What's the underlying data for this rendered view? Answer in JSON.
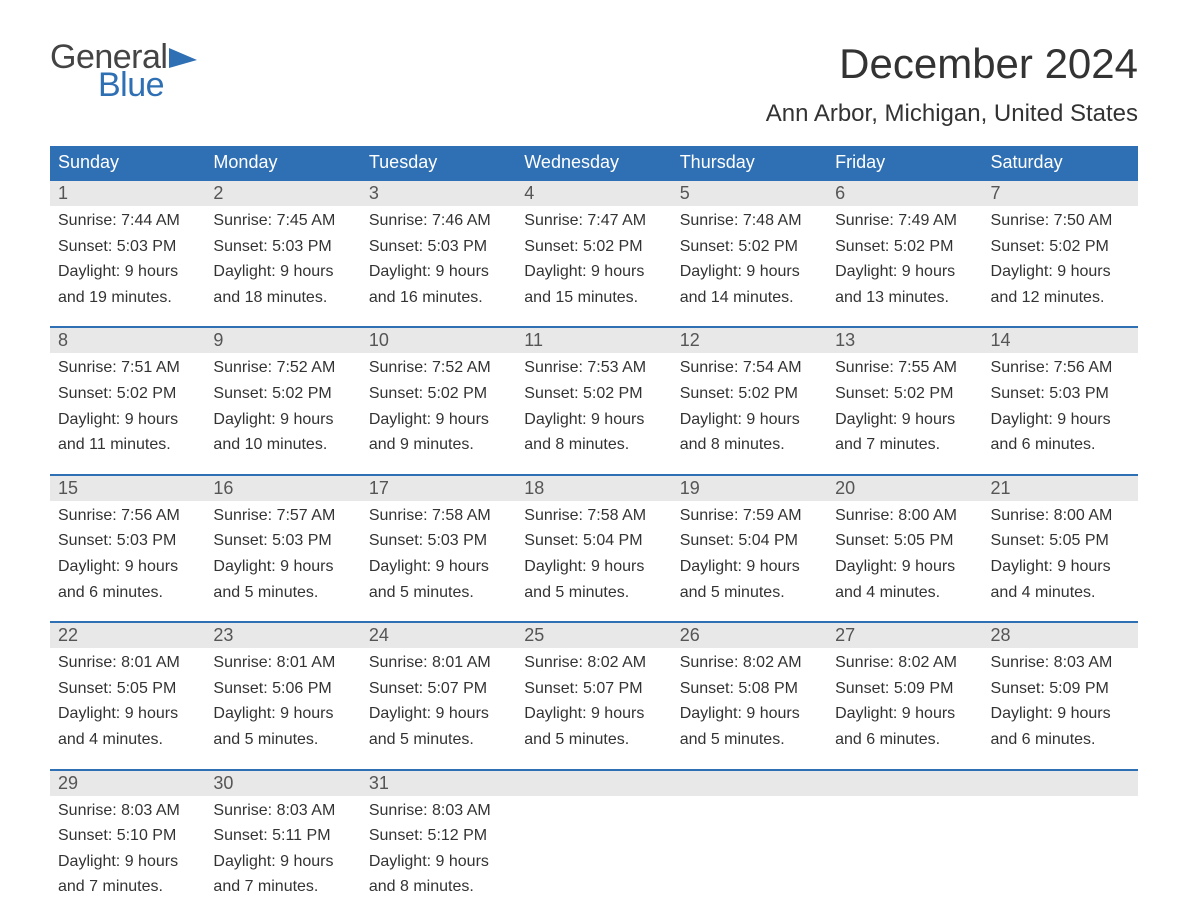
{
  "logo": {
    "text_general": "General",
    "text_blue": "Blue",
    "flag_color": "#2f6fb3",
    "general_color": "#444444"
  },
  "title": "December 2024",
  "location": "Ann Arbor, Michigan, United States",
  "colors": {
    "header_bg": "#2f6fb3",
    "header_text": "#ffffff",
    "daynum_bg": "#e8e8e8",
    "daynum_text": "#555555",
    "body_text": "#333333",
    "week_border": "#2f6fb3",
    "page_bg": "#ffffff"
  },
  "fonts": {
    "title_size_pt": 32,
    "location_size_pt": 18,
    "day_header_size_pt": 14,
    "daynum_size_pt": 14,
    "cell_size_pt": 12,
    "family": "Arial"
  },
  "day_names": [
    "Sunday",
    "Monday",
    "Tuesday",
    "Wednesday",
    "Thursday",
    "Friday",
    "Saturday"
  ],
  "weeks": [
    [
      {
        "n": "1",
        "sr": "Sunrise: 7:44 AM",
        "ss": "Sunset: 5:03 PM",
        "d1": "Daylight: 9 hours",
        "d2": "and 19 minutes."
      },
      {
        "n": "2",
        "sr": "Sunrise: 7:45 AM",
        "ss": "Sunset: 5:03 PM",
        "d1": "Daylight: 9 hours",
        "d2": "and 18 minutes."
      },
      {
        "n": "3",
        "sr": "Sunrise: 7:46 AM",
        "ss": "Sunset: 5:03 PM",
        "d1": "Daylight: 9 hours",
        "d2": "and 16 minutes."
      },
      {
        "n": "4",
        "sr": "Sunrise: 7:47 AM",
        "ss": "Sunset: 5:02 PM",
        "d1": "Daylight: 9 hours",
        "d2": "and 15 minutes."
      },
      {
        "n": "5",
        "sr": "Sunrise: 7:48 AM",
        "ss": "Sunset: 5:02 PM",
        "d1": "Daylight: 9 hours",
        "d2": "and 14 minutes."
      },
      {
        "n": "6",
        "sr": "Sunrise: 7:49 AM",
        "ss": "Sunset: 5:02 PM",
        "d1": "Daylight: 9 hours",
        "d2": "and 13 minutes."
      },
      {
        "n": "7",
        "sr": "Sunrise: 7:50 AM",
        "ss": "Sunset: 5:02 PM",
        "d1": "Daylight: 9 hours",
        "d2": "and 12 minutes."
      }
    ],
    [
      {
        "n": "8",
        "sr": "Sunrise: 7:51 AM",
        "ss": "Sunset: 5:02 PM",
        "d1": "Daylight: 9 hours",
        "d2": "and 11 minutes."
      },
      {
        "n": "9",
        "sr": "Sunrise: 7:52 AM",
        "ss": "Sunset: 5:02 PM",
        "d1": "Daylight: 9 hours",
        "d2": "and 10 minutes."
      },
      {
        "n": "10",
        "sr": "Sunrise: 7:52 AM",
        "ss": "Sunset: 5:02 PM",
        "d1": "Daylight: 9 hours",
        "d2": "and 9 minutes."
      },
      {
        "n": "11",
        "sr": "Sunrise: 7:53 AM",
        "ss": "Sunset: 5:02 PM",
        "d1": "Daylight: 9 hours",
        "d2": "and 8 minutes."
      },
      {
        "n": "12",
        "sr": "Sunrise: 7:54 AM",
        "ss": "Sunset: 5:02 PM",
        "d1": "Daylight: 9 hours",
        "d2": "and 8 minutes."
      },
      {
        "n": "13",
        "sr": "Sunrise: 7:55 AM",
        "ss": "Sunset: 5:02 PM",
        "d1": "Daylight: 9 hours",
        "d2": "and 7 minutes."
      },
      {
        "n": "14",
        "sr": "Sunrise: 7:56 AM",
        "ss": "Sunset: 5:03 PM",
        "d1": "Daylight: 9 hours",
        "d2": "and 6 minutes."
      }
    ],
    [
      {
        "n": "15",
        "sr": "Sunrise: 7:56 AM",
        "ss": "Sunset: 5:03 PM",
        "d1": "Daylight: 9 hours",
        "d2": "and 6 minutes."
      },
      {
        "n": "16",
        "sr": "Sunrise: 7:57 AM",
        "ss": "Sunset: 5:03 PM",
        "d1": "Daylight: 9 hours",
        "d2": "and 5 minutes."
      },
      {
        "n": "17",
        "sr": "Sunrise: 7:58 AM",
        "ss": "Sunset: 5:03 PM",
        "d1": "Daylight: 9 hours",
        "d2": "and 5 minutes."
      },
      {
        "n": "18",
        "sr": "Sunrise: 7:58 AM",
        "ss": "Sunset: 5:04 PM",
        "d1": "Daylight: 9 hours",
        "d2": "and 5 minutes."
      },
      {
        "n": "19",
        "sr": "Sunrise: 7:59 AM",
        "ss": "Sunset: 5:04 PM",
        "d1": "Daylight: 9 hours",
        "d2": "and 5 minutes."
      },
      {
        "n": "20",
        "sr": "Sunrise: 8:00 AM",
        "ss": "Sunset: 5:05 PM",
        "d1": "Daylight: 9 hours",
        "d2": "and 4 minutes."
      },
      {
        "n": "21",
        "sr": "Sunrise: 8:00 AM",
        "ss": "Sunset: 5:05 PM",
        "d1": "Daylight: 9 hours",
        "d2": "and 4 minutes."
      }
    ],
    [
      {
        "n": "22",
        "sr": "Sunrise: 8:01 AM",
        "ss": "Sunset: 5:05 PM",
        "d1": "Daylight: 9 hours",
        "d2": "and 4 minutes."
      },
      {
        "n": "23",
        "sr": "Sunrise: 8:01 AM",
        "ss": "Sunset: 5:06 PM",
        "d1": "Daylight: 9 hours",
        "d2": "and 5 minutes."
      },
      {
        "n": "24",
        "sr": "Sunrise: 8:01 AM",
        "ss": "Sunset: 5:07 PM",
        "d1": "Daylight: 9 hours",
        "d2": "and 5 minutes."
      },
      {
        "n": "25",
        "sr": "Sunrise: 8:02 AM",
        "ss": "Sunset: 5:07 PM",
        "d1": "Daylight: 9 hours",
        "d2": "and 5 minutes."
      },
      {
        "n": "26",
        "sr": "Sunrise: 8:02 AM",
        "ss": "Sunset: 5:08 PM",
        "d1": "Daylight: 9 hours",
        "d2": "and 5 minutes."
      },
      {
        "n": "27",
        "sr": "Sunrise: 8:02 AM",
        "ss": "Sunset: 5:09 PM",
        "d1": "Daylight: 9 hours",
        "d2": "and 6 minutes."
      },
      {
        "n": "28",
        "sr": "Sunrise: 8:03 AM",
        "ss": "Sunset: 5:09 PM",
        "d1": "Daylight: 9 hours",
        "d2": "and 6 minutes."
      }
    ],
    [
      {
        "n": "29",
        "sr": "Sunrise: 8:03 AM",
        "ss": "Sunset: 5:10 PM",
        "d1": "Daylight: 9 hours",
        "d2": "and 7 minutes."
      },
      {
        "n": "30",
        "sr": "Sunrise: 8:03 AM",
        "ss": "Sunset: 5:11 PM",
        "d1": "Daylight: 9 hours",
        "d2": "and 7 minutes."
      },
      {
        "n": "31",
        "sr": "Sunrise: 8:03 AM",
        "ss": "Sunset: 5:12 PM",
        "d1": "Daylight: 9 hours",
        "d2": "and 8 minutes."
      },
      null,
      null,
      null,
      null
    ]
  ]
}
